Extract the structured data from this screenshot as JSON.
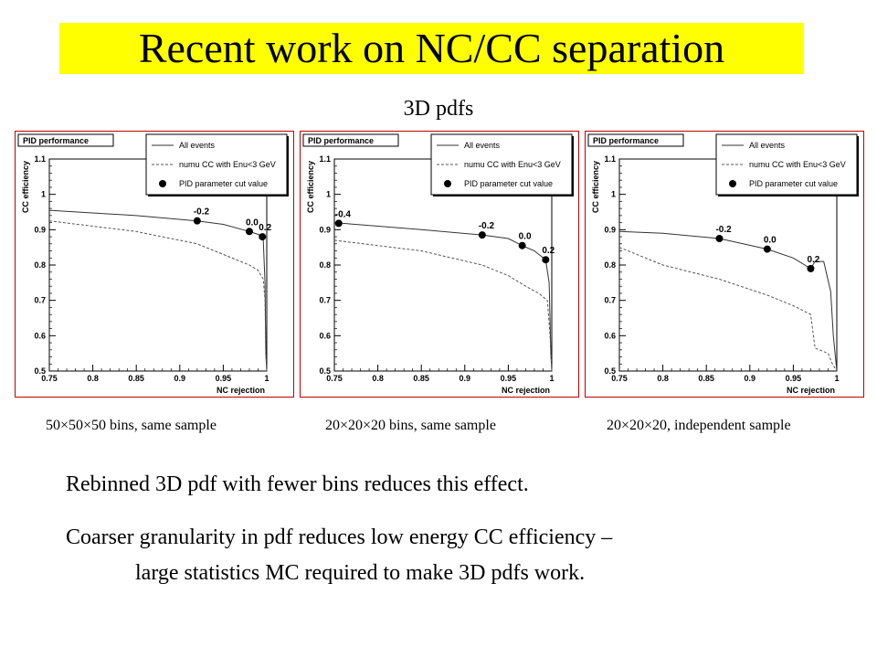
{
  "slide": {
    "title": "Recent work on NC/CC separation",
    "subtitle": "3D pdfs",
    "captions": [
      "50×50×50 bins, same sample",
      "20×20×20 bins, same sample",
      "20×20×20, independent sample"
    ],
    "text_1": "Rebinned 3D pdf with fewer bins reduces this effect.",
    "text_2a": "Coarser granularity in pdf reduces low energy CC efficiency –",
    "text_2b": "large statistics MC required to make 3D pdfs work.",
    "colors": {
      "title_bg": "#ffff00",
      "panel_border": "#c00000"
    }
  },
  "chart_data": [
    {
      "type": "line",
      "title": "PID performance",
      "xlabel": "NC rejection",
      "ylabel": "CC efficiency",
      "xlim": [
        0.75,
        1.0
      ],
      "ylim": [
        0.5,
        1.1
      ],
      "xticks": [
        "0.75",
        "0.8",
        "0.85",
        "0.9",
        "0.95",
        "1"
      ],
      "yticks": [
        "0.5",
        "0.6",
        "0.7",
        "0.8",
        "0.9",
        "1",
        "1.1"
      ],
      "legend": [
        "All events",
        "numu CC with Enu<3 GeV",
        "PID parameter cut value"
      ],
      "series": [
        {
          "name": "All events",
          "style": "solid",
          "x": [
            0.75,
            0.85,
            0.92,
            0.95,
            0.98,
            0.992,
            0.996,
            0.998,
            0.999,
            1.0
          ],
          "y": [
            0.955,
            0.94,
            0.925,
            0.915,
            0.895,
            0.885,
            0.87,
            0.75,
            0.55,
            0.5
          ]
        },
        {
          "name": "numu CC with Enu<3 GeV",
          "style": "dashed",
          "x": [
            0.75,
            0.85,
            0.92,
            0.95,
            0.98,
            0.99,
            0.996,
            0.998,
            0.999,
            1.0
          ],
          "y": [
            0.925,
            0.895,
            0.86,
            0.83,
            0.8,
            0.785,
            0.76,
            0.7,
            0.55,
            0.5
          ]
        }
      ],
      "cut_points": [
        {
          "label": "-0.2",
          "x": 0.92,
          "y": 0.925
        },
        {
          "label": "0.0",
          "x": 0.98,
          "y": 0.895
        },
        {
          "label": "0.2",
          "x": 0.995,
          "y": 0.88
        }
      ]
    },
    {
      "type": "line",
      "title": "PID performance",
      "xlabel": "NC rejection",
      "ylabel": "CC efficiency",
      "xlim": [
        0.75,
        1.0
      ],
      "ylim": [
        0.5,
        1.1
      ],
      "xticks": [
        "0.75",
        "0.8",
        "0.85",
        "0.9",
        "0.95",
        "1"
      ],
      "yticks": [
        "0.5",
        "0.6",
        "0.7",
        "0.8",
        "0.9",
        "1",
        "1.1"
      ],
      "legend": [
        "All events",
        "numu CC with Enu<3 GeV",
        "PID parameter cut value"
      ],
      "series": [
        {
          "name": "All events",
          "style": "solid",
          "x": [
            0.75,
            0.76,
            0.85,
            0.92,
            0.95,
            0.966,
            0.98,
            0.993,
            0.997,
            0.999,
            1.0
          ],
          "y": [
            0.92,
            0.918,
            0.9,
            0.885,
            0.875,
            0.855,
            0.84,
            0.815,
            0.75,
            0.55,
            0.5
          ]
        },
        {
          "name": "numu CC with Enu<3 GeV",
          "style": "dashed",
          "x": [
            0.75,
            0.85,
            0.92,
            0.95,
            0.97,
            0.985,
            0.995,
            0.998,
            1.0
          ],
          "y": [
            0.87,
            0.84,
            0.8,
            0.77,
            0.74,
            0.72,
            0.7,
            0.6,
            0.5
          ]
        }
      ],
      "cut_points": [
        {
          "label": "-0.4",
          "x": 0.755,
          "y": 0.918
        },
        {
          "label": "-0.2",
          "x": 0.92,
          "y": 0.885
        },
        {
          "label": "0.0",
          "x": 0.966,
          "y": 0.855
        },
        {
          "label": "0.2",
          "x": 0.993,
          "y": 0.815
        }
      ]
    },
    {
      "type": "line",
      "title": "PID performance",
      "xlabel": "NC rejection",
      "ylabel": "CC efficiency",
      "xlim": [
        0.75,
        1.0
      ],
      "ylim": [
        0.5,
        1.1
      ],
      "xticks": [
        "0.75",
        "0.8",
        "0.85",
        "0.9",
        "0.95",
        "1"
      ],
      "yticks": [
        "0.5",
        "0.6",
        "0.7",
        "0.8",
        "0.9",
        "1",
        "1.1"
      ],
      "legend": [
        "All events",
        "numu CC with Enu<3 GeV",
        "PID parameter cut value"
      ],
      "series": [
        {
          "name": "All events",
          "style": "solid",
          "x": [
            0.75,
            0.8,
            0.865,
            0.92,
            0.95,
            0.97,
            0.975,
            0.985,
            0.993,
            0.996,
            1.0
          ],
          "y": [
            0.895,
            0.89,
            0.875,
            0.845,
            0.82,
            0.79,
            0.81,
            0.81,
            0.725,
            0.6,
            0.5
          ]
        },
        {
          "name": "numu CC with Enu<3 GeV",
          "style": "dashed",
          "x": [
            0.75,
            0.8,
            0.865,
            0.92,
            0.95,
            0.97,
            0.975,
            0.99,
            0.995,
            1.0
          ],
          "y": [
            0.85,
            0.8,
            0.76,
            0.715,
            0.685,
            0.66,
            0.565,
            0.55,
            0.52,
            0.5
          ]
        }
      ],
      "cut_points": [
        {
          "label": "-0.2",
          "x": 0.865,
          "y": 0.875
        },
        {
          "label": "0.0",
          "x": 0.92,
          "y": 0.845
        },
        {
          "label": "0.2",
          "x": 0.97,
          "y": 0.79
        }
      ]
    }
  ]
}
